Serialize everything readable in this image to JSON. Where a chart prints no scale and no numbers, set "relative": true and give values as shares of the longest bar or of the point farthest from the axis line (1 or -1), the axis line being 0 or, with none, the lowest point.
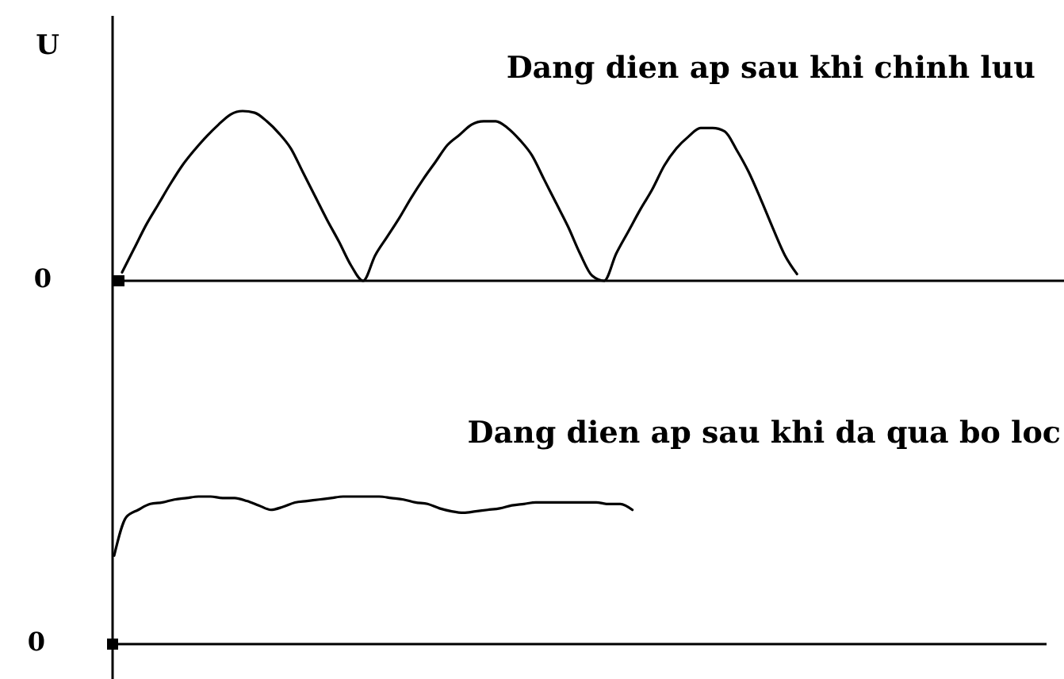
{
  "chart_data": [
    {
      "type": "line",
      "title": "Dang dien ap sau khi chinh luu",
      "ylabel": "U",
      "relative": true,
      "annotations": [
        "0"
      ],
      "categories": [
        null,
        null,
        null,
        null,
        null,
        null,
        null,
        null,
        null,
        null,
        null,
        null,
        null,
        null,
        null,
        null,
        null,
        null,
        null,
        null,
        null,
        null,
        null,
        null,
        null,
        null,
        null,
        null,
        null,
        null,
        null,
        null,
        null,
        null,
        null,
        null,
        null,
        null,
        null,
        null,
        null,
        null,
        null,
        null,
        null,
        null,
        null,
        null,
        null,
        null,
        null,
        null,
        null,
        null,
        null,
        null,
        null,
        null,
        null,
        null,
        null,
        null,
        null,
        null,
        null,
        null,
        null,
        null,
        null,
        null,
        null,
        null,
        null,
        null,
        null,
        null,
        null,
        null,
        null
      ],
      "series": [
        {
          "color": "#000000",
          "values": [
            0.05,
            0.19,
            0.33,
            0.45,
            0.57,
            0.68,
            0.77,
            0.85,
            0.92,
            0.98,
            1.0,
            0.99,
            0.94,
            0.87,
            0.78,
            0.64,
            0.5,
            0.36,
            0.23,
            0.09,
            0,
            0.15,
            0.26,
            0.37,
            0.49,
            0.6,
            0.7,
            0.8,
            0.86,
            0.92,
            0.94,
            0.94,
            0.9,
            0.83,
            0.74,
            0.6,
            0.46,
            0.32,
            0.16,
            0.03,
            0,
            0.16,
            0.29,
            0.42,
            0.54,
            0.68,
            0.78,
            0.85,
            0.9,
            0.9,
            0.88,
            0.77,
            0.64,
            0.48,
            0.31,
            0.15,
            0.04,
            null,
            null,
            null,
            null,
            null,
            null,
            null,
            null,
            null,
            null,
            null,
            null,
            null,
            null,
            null,
            null,
            null,
            null,
            null,
            null,
            null,
            null
          ]
        }
      ]
    },
    {
      "type": "line",
      "title": "Dang dien ap sau khi da qua bo loc",
      "relative": true,
      "annotations": [
        "0"
      ],
      "categories": [
        null,
        null,
        null,
        null,
        null,
        null,
        null,
        null,
        null,
        null,
        null,
        null,
        null,
        null,
        null,
        null,
        null,
        null,
        null,
        null,
        null,
        null,
        null,
        null,
        null,
        null,
        null,
        null,
        null,
        null,
        null,
        null,
        null,
        null,
        null,
        null,
        null,
        null,
        null,
        null,
        null,
        null,
        null,
        null,
        null,
        null,
        null,
        null,
        null,
        null,
        null,
        null,
        null,
        null,
        null,
        null,
        null,
        null,
        null,
        null,
        null,
        null,
        null,
        null,
        null,
        null,
        null,
        null,
        null,
        null,
        null,
        null,
        null,
        null,
        null,
        null,
        null,
        null
      ],
      "series": [
        {
          "color": "#000000",
          "values": [
            0.6,
            0.86,
            0.91,
            0.95,
            0.96,
            0.98,
            0.99,
            1.0,
            1.0,
            0.99,
            0.99,
            0.97,
            0.94,
            0.91,
            0.93,
            0.96,
            0.97,
            0.98,
            0.99,
            1.0,
            1.0,
            1.0,
            1.0,
            0.99,
            0.98,
            0.96,
            0.95,
            0.92,
            0.9,
            0.89,
            0.9,
            0.91,
            0.92,
            0.94,
            0.95,
            0.96,
            0.96,
            0.96,
            0.96,
            0.96,
            0.96,
            0.95,
            0.95,
            0.91,
            null,
            null,
            null,
            null,
            null,
            null,
            null,
            null,
            null,
            null,
            null,
            null,
            null,
            null,
            null,
            null,
            null,
            null,
            null,
            null,
            null,
            null,
            null,
            null,
            null,
            null,
            null,
            null,
            null,
            null,
            null,
            null,
            null,
            null
          ]
        }
      ]
    }
  ]
}
